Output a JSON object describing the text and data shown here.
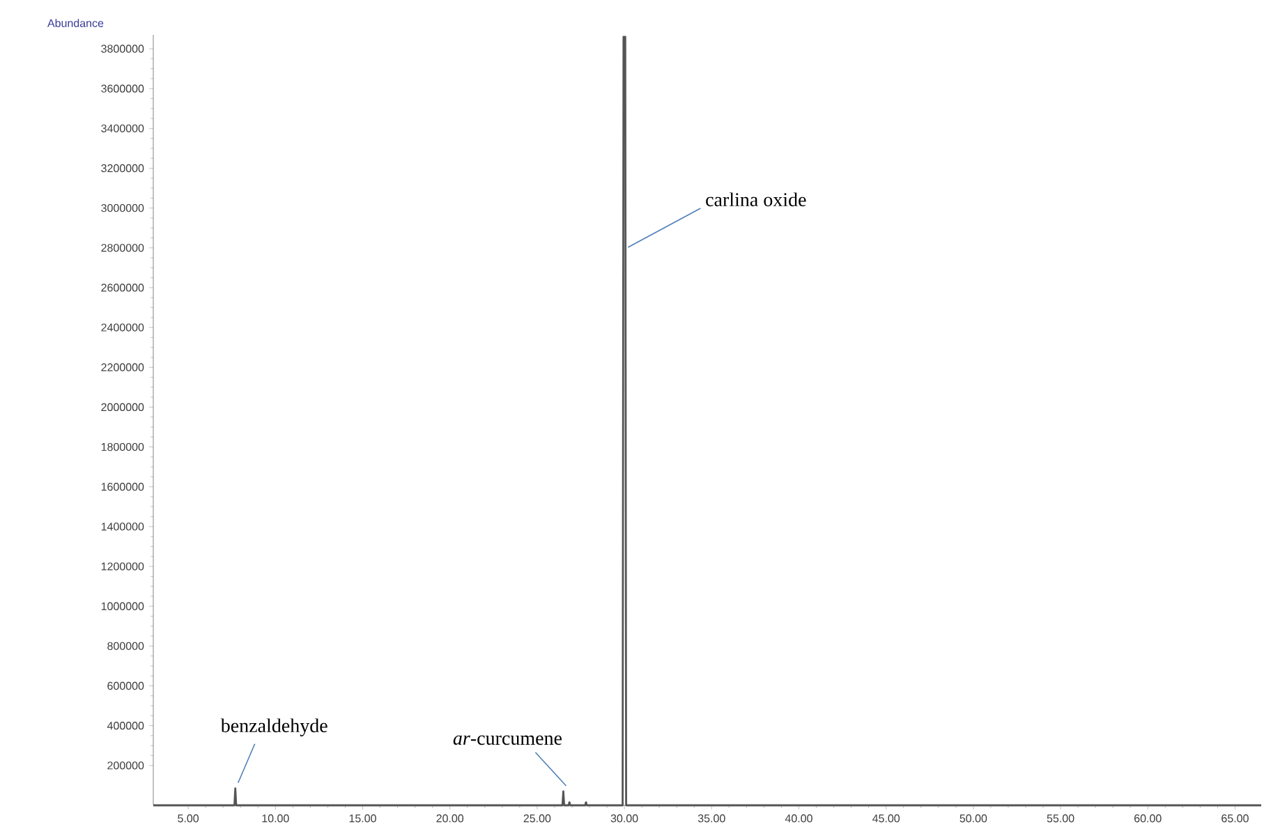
{
  "chart_data": {
    "type": "line",
    "ylabel": "Abundance",
    "x": [
      3,
      7.65,
      7.7,
      7.75,
      26.45,
      26.5,
      26.55,
      26.8,
      26.85,
      26.9,
      27.75,
      27.8,
      27.85,
      29.9,
      29.95,
      30.05,
      30.1,
      66.5
    ],
    "series": [
      {
        "color": "#555555",
        "values": [
          0,
          0,
          85000,
          0,
          0,
          70000,
          0,
          0,
          15000,
          0,
          0,
          15000,
          0,
          0,
          3860000,
          3860000,
          0,
          0
        ]
      }
    ],
    "xlim": [
      3,
      66.5
    ],
    "ylim": [
      0,
      3870000
    ],
    "xticks": [
      {
        "value": 5,
        "label": "5.00"
      },
      {
        "value": 10,
        "label": "10.00"
      },
      {
        "value": 15,
        "label": "15.00"
      },
      {
        "value": 20,
        "label": "20.00"
      },
      {
        "value": 25,
        "label": "25.00"
      },
      {
        "value": 30,
        "label": "30.00"
      },
      {
        "value": 35,
        "label": "35.00"
      },
      {
        "value": 40,
        "label": "40.00"
      },
      {
        "value": 45,
        "label": "45.00"
      },
      {
        "value": 50,
        "label": "50.00"
      },
      {
        "value": 55,
        "label": "55.00"
      },
      {
        "value": 60,
        "label": "60.00"
      },
      {
        "value": 65,
        "label": "65.00"
      }
    ],
    "yticks": [
      200000,
      400000,
      600000,
      800000,
      1000000,
      1200000,
      1400000,
      1600000,
      1800000,
      2000000,
      2200000,
      2400000,
      2600000,
      2800000,
      3000000,
      3200000,
      3400000,
      3600000,
      3800000
    ],
    "annotations": [
      {
        "text": "benzaldehyde",
        "x": 7.7,
        "y": 85000
      },
      {
        "text": "*ar*-curcumene",
        "x": 26.5,
        "y": 70000
      },
      {
        "text": "carlina oxide",
        "x": 30.05,
        "y": 2775000
      }
    ],
    "marker": "none",
    "line_style": "solid"
  }
}
